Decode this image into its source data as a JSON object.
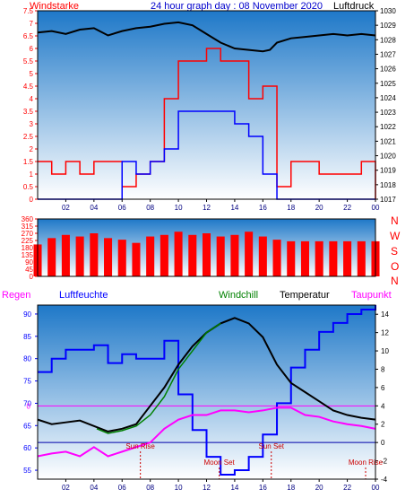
{
  "header": {
    "title": "24 hour graph day : 08 November 2020",
    "left_label": "Windstarke",
    "right_label": "Luftdruck"
  },
  "colors": {
    "wind_speed": "#ff0000",
    "gust": "#0000ff",
    "pressure": "#000000",
    "direction": "#ff0000",
    "humidity": "#0000ff",
    "windchill": "#008000",
    "temperature": "#000000",
    "dewpoint": "#ff00ff",
    "rain": "#ff00ff",
    "sky_top": "#1e78c8",
    "sky_bottom": "#ffffff"
  },
  "chart_data": [
    {
      "type": "line",
      "panel": "wind-pressure",
      "title": "24 hour graph day : 08 November 2020",
      "ylabel_left": "Windstarke",
      "ylabel_right": "Luftdruck",
      "x_ticks": [
        "02",
        "04",
        "06",
        "08",
        "10",
        "12",
        "14",
        "16",
        "18",
        "20",
        "22",
        "00"
      ],
      "y_left_ticks": [
        "0",
        "0.5",
        "1",
        "1.5",
        "2",
        "2.5",
        "3",
        "3.5",
        "4",
        "4.5",
        "5",
        "5.5",
        "6",
        "6.5",
        "7",
        "7.5"
      ],
      "y_right_ticks": [
        "1017",
        "1018",
        "1019",
        "1020",
        "1021",
        "1022",
        "1023",
        "1024",
        "1025",
        "1026",
        "1027",
        "1028",
        "1029",
        "1030"
      ],
      "ylim_left": [
        0,
        7.5
      ],
      "ylim_right": [
        1017,
        1030
      ],
      "series": [
        {
          "axis": "right",
          "x": [
            0,
            1,
            2,
            3,
            4,
            5,
            6,
            7,
            8,
            9,
            10,
            11,
            12,
            13,
            14,
            15,
            16,
            16.5,
            17,
            18,
            19,
            20,
            21,
            22,
            23,
            24
          ],
          "values": [
            1028.5,
            1028.6,
            1028.4,
            1028.7,
            1028.8,
            1028.3,
            1028.6,
            1028.8,
            1028.9,
            1029.1,
            1029.2,
            1029.0,
            1028.4,
            1027.8,
            1027.4,
            1027.3,
            1027.2,
            1027.3,
            1027.8,
            1028.1,
            1028.2,
            1028.3,
            1028.4,
            1028.3,
            1028.4,
            1028.3
          ]
        },
        {
          "axis": "left",
          "x": [
            0,
            1,
            2,
            3,
            4,
            5,
            6,
            7,
            8,
            9,
            10,
            11,
            12,
            13,
            14,
            15,
            16,
            17,
            18,
            19,
            20,
            21,
            22,
            23,
            24
          ],
          "values": [
            1.5,
            1,
            1.5,
            1,
            1.5,
            1.5,
            0.5,
            1,
            1.5,
            4,
            5.5,
            5.5,
            6,
            5.5,
            5.5,
            4,
            4.5,
            0.5,
            1.5,
            1.5,
            1,
            1,
            1,
            1.5,
            0
          ]
        },
        {
          "axis": "left",
          "x": [
            0,
            1,
            2,
            3,
            4,
            5,
            6,
            7,
            8,
            9,
            10,
            11,
            12,
            13,
            14,
            15,
            16,
            17,
            18,
            19,
            20,
            21,
            22,
            23,
            24
          ],
          "values": [
            0,
            0,
            0,
            0,
            0,
            0,
            1.5,
            1,
            1.5,
            2,
            3.5,
            3.5,
            3.5,
            3.5,
            3,
            2.5,
            1,
            0,
            0,
            0,
            0,
            0,
            0,
            0,
            0
          ]
        }
      ]
    },
    {
      "type": "bar",
      "panel": "wind-direction",
      "y_ticks": [
        "0",
        "45",
        "90",
        "135",
        "180",
        "225",
        "270",
        "315",
        "360"
      ],
      "y_right_labels": [
        "N",
        "W",
        "S",
        "O",
        "N"
      ],
      "ylim": [
        0,
        360
      ],
      "x": [
        0,
        1,
        2,
        3,
        4,
        5,
        6,
        7,
        8,
        9,
        10,
        11,
        12,
        13,
        14,
        15,
        16,
        17,
        18,
        19,
        20,
        21,
        22,
        23,
        24
      ],
      "values": [
        200,
        240,
        260,
        250,
        270,
        240,
        230,
        210,
        250,
        260,
        280,
        260,
        270,
        250,
        260,
        280,
        250,
        230,
        220,
        220,
        220,
        220,
        220,
        220,
        220
      ]
    },
    {
      "type": "line",
      "panel": "temperature-humidity",
      "top_labels": {
        "rain": "Regen",
        "humidity": "Luftfeuchte",
        "windchill": "Windchill",
        "temperature": "Temperatur",
        "dewpoint": "Taupunkt"
      },
      "y_left_ticks": [
        "55",
        "60",
        "65",
        "70",
        "75",
        "80",
        "85",
        "90"
      ],
      "y_left_extra": "0",
      "y_right_ticks": [
        "-4",
        "-2",
        "0",
        "2",
        "4",
        "6",
        "8",
        "10",
        "12",
        "14"
      ],
      "ylim_left": [
        53,
        92
      ],
      "ylim_right": [
        -4,
        15
      ],
      "x_ticks": [
        "02",
        "04",
        "06",
        "08",
        "10",
        "12",
        "14",
        "16",
        "18",
        "20",
        "22",
        "00"
      ],
      "annotations": [
        "Sun Rise",
        "Moon Set",
        "Sun Set",
        "Moon Rise"
      ],
      "series": [
        {
          "name": "Luftfeuchte",
          "axis": "left",
          "x": [
            0,
            1,
            2,
            3,
            4,
            5,
            6,
            7,
            8,
            9,
            10,
            11,
            12,
            13,
            14,
            15,
            16,
            17,
            18,
            19,
            20,
            21,
            22,
            23,
            24
          ],
          "values": [
            77,
            80,
            82,
            82,
            83,
            79,
            81,
            80,
            80,
            84,
            72,
            64,
            58,
            54,
            55,
            58,
            63,
            70,
            78,
            82,
            86,
            88,
            90,
            91,
            92
          ]
        },
        {
          "name": "Temperatur",
          "axis": "right",
          "x": [
            0,
            1,
            2,
            3,
            4,
            5,
            6,
            7,
            8,
            9,
            10,
            11,
            12,
            13,
            14,
            15,
            16,
            17,
            18,
            19,
            20,
            21,
            22,
            23,
            24
          ],
          "values": [
            2.5,
            2,
            2.2,
            2.4,
            1.8,
            1.2,
            1.5,
            2,
            4,
            6,
            8.5,
            10.5,
            12,
            13,
            13.6,
            13,
            11.5,
            8.5,
            6.5,
            5.5,
            4.5,
            3.5,
            3,
            2.7,
            2.5
          ]
        },
        {
          "name": "Windchill",
          "axis": "right",
          "x": [
            4.2,
            5,
            6,
            7,
            8,
            9,
            10,
            11,
            12,
            13
          ],
          "values": [
            1.5,
            1,
            1.3,
            1.8,
            3,
            5,
            8,
            10,
            12,
            13
          ]
        },
        {
          "name": "Taupunkt",
          "axis": "right",
          "x": [
            0,
            1,
            2,
            3,
            4,
            5,
            6,
            7,
            8,
            9,
            10,
            11,
            12,
            13,
            14,
            15,
            16,
            17,
            18,
            19,
            20,
            21,
            22,
            23,
            24
          ],
          "values": [
            -1.5,
            -1.2,
            -1,
            -1.5,
            -0.5,
            -1.5,
            -1,
            -0.5,
            0,
            1.5,
            2.5,
            3,
            3,
            3.5,
            3.5,
            3.3,
            3.5,
            3.8,
            3.8,
            3,
            2.8,
            2.3,
            2,
            1.8,
            1.5
          ]
        }
      ]
    }
  ]
}
